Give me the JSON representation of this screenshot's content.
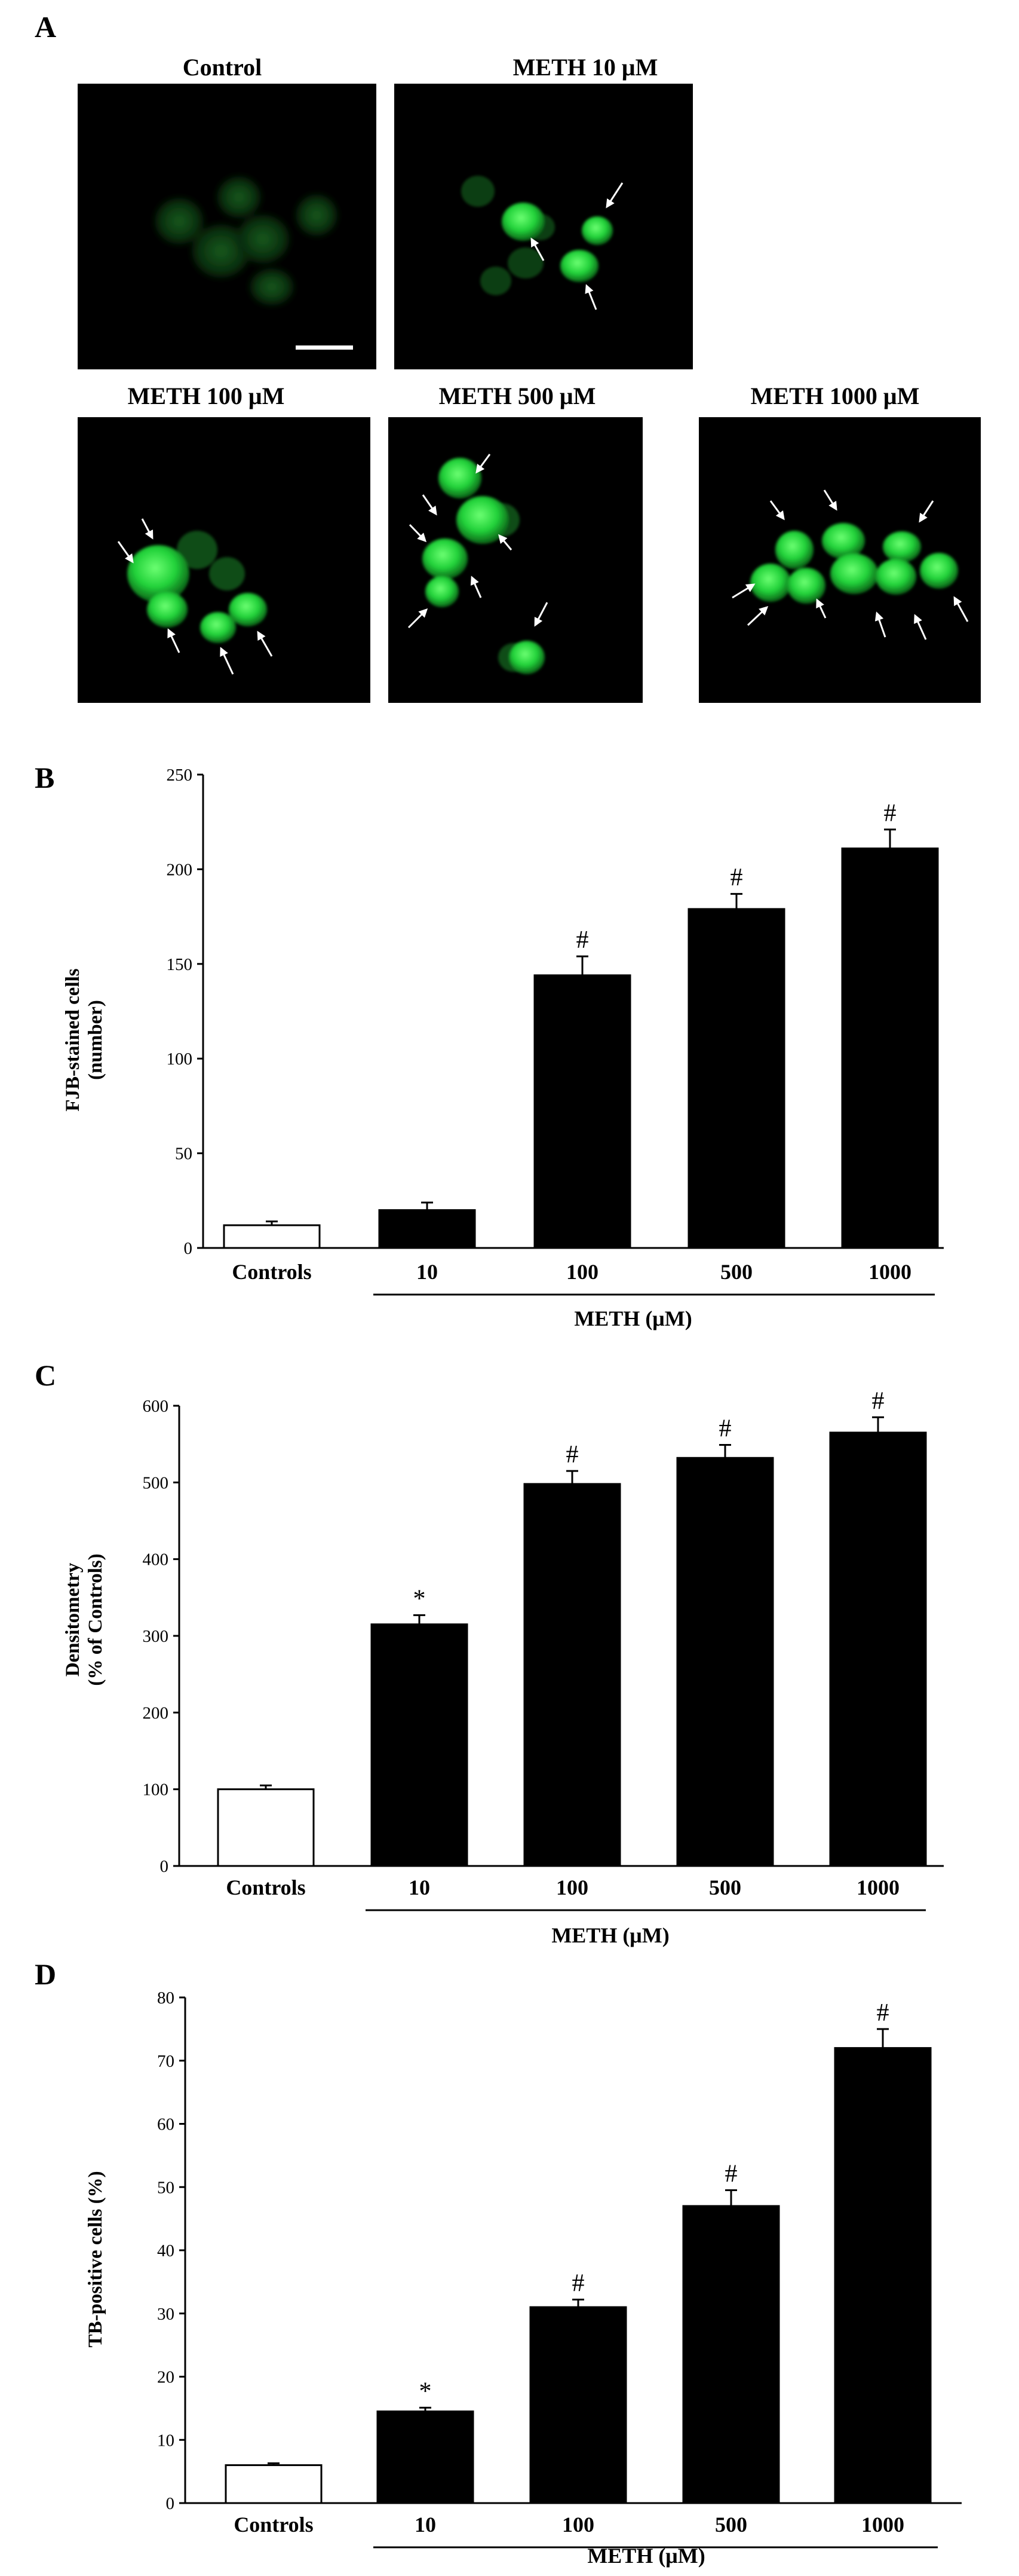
{
  "figure": {
    "panel_labels": {
      "a": "A",
      "b": "B",
      "c": "C",
      "d": "D"
    },
    "micrographs": [
      {
        "title": "Control"
      },
      {
        "title": "METH 10 μM"
      },
      {
        "title": "METH 100 μM"
      },
      {
        "title": "METH 500 μM"
      },
      {
        "title": "METH 1000 μM"
      }
    ],
    "colors": {
      "fluorescence": "#22d23a",
      "background": "#000000",
      "arrow": "#ffffff"
    }
  },
  "chart_data": [
    {
      "type": "bar",
      "panel": "B",
      "categories": [
        "Controls",
        "10",
        "100",
        "500",
        "1000"
      ],
      "values": [
        12,
        20,
        144,
        179,
        211
      ],
      "errors": [
        2,
        4,
        10,
        8,
        10
      ],
      "bar_colors": [
        "#ffffff",
        "#000000",
        "#000000",
        "#000000",
        "#000000"
      ],
      "significance": [
        "",
        "",
        "#",
        "#",
        "#"
      ],
      "ylabel_line1": "FJB-stained cells",
      "ylabel_line2": "(number)",
      "group_label": "METH (μM)",
      "ylim": [
        0,
        250
      ],
      "yticks": [
        0,
        50,
        100,
        150,
        200,
        250
      ]
    },
    {
      "type": "bar",
      "panel": "C",
      "categories": [
        "Controls",
        "10",
        "100",
        "500",
        "1000"
      ],
      "values": [
        100,
        315,
        498,
        532,
        565
      ],
      "errors": [
        5,
        12,
        17,
        17,
        20
      ],
      "bar_colors": [
        "#ffffff",
        "#000000",
        "#000000",
        "#000000",
        "#000000"
      ],
      "significance": [
        "",
        "*",
        "#",
        "#",
        "#"
      ],
      "ylabel_line1": "Densitometry",
      "ylabel_line2": "(% of Controls)",
      "group_label": "METH (μM)",
      "ylim": [
        0,
        600
      ],
      "yticks": [
        0,
        100,
        200,
        300,
        400,
        500,
        600
      ]
    },
    {
      "type": "bar",
      "panel": "D",
      "categories": [
        "Controls",
        "10",
        "100",
        "500",
        "1000"
      ],
      "values": [
        6,
        14.5,
        31,
        47,
        72
      ],
      "errors": [
        0.3,
        0.6,
        1.2,
        2.5,
        3
      ],
      "bar_colors": [
        "#ffffff",
        "#000000",
        "#000000",
        "#000000",
        "#000000"
      ],
      "significance": [
        "",
        "*",
        "#",
        "#",
        "#"
      ],
      "ylabel_line1": "TB-positive cells (%)",
      "ylabel_line2": "",
      "group_label": "METH (μM)",
      "ylim": [
        0,
        80
      ],
      "yticks": [
        0,
        10,
        20,
        30,
        40,
        50,
        60,
        70,
        80
      ]
    }
  ]
}
